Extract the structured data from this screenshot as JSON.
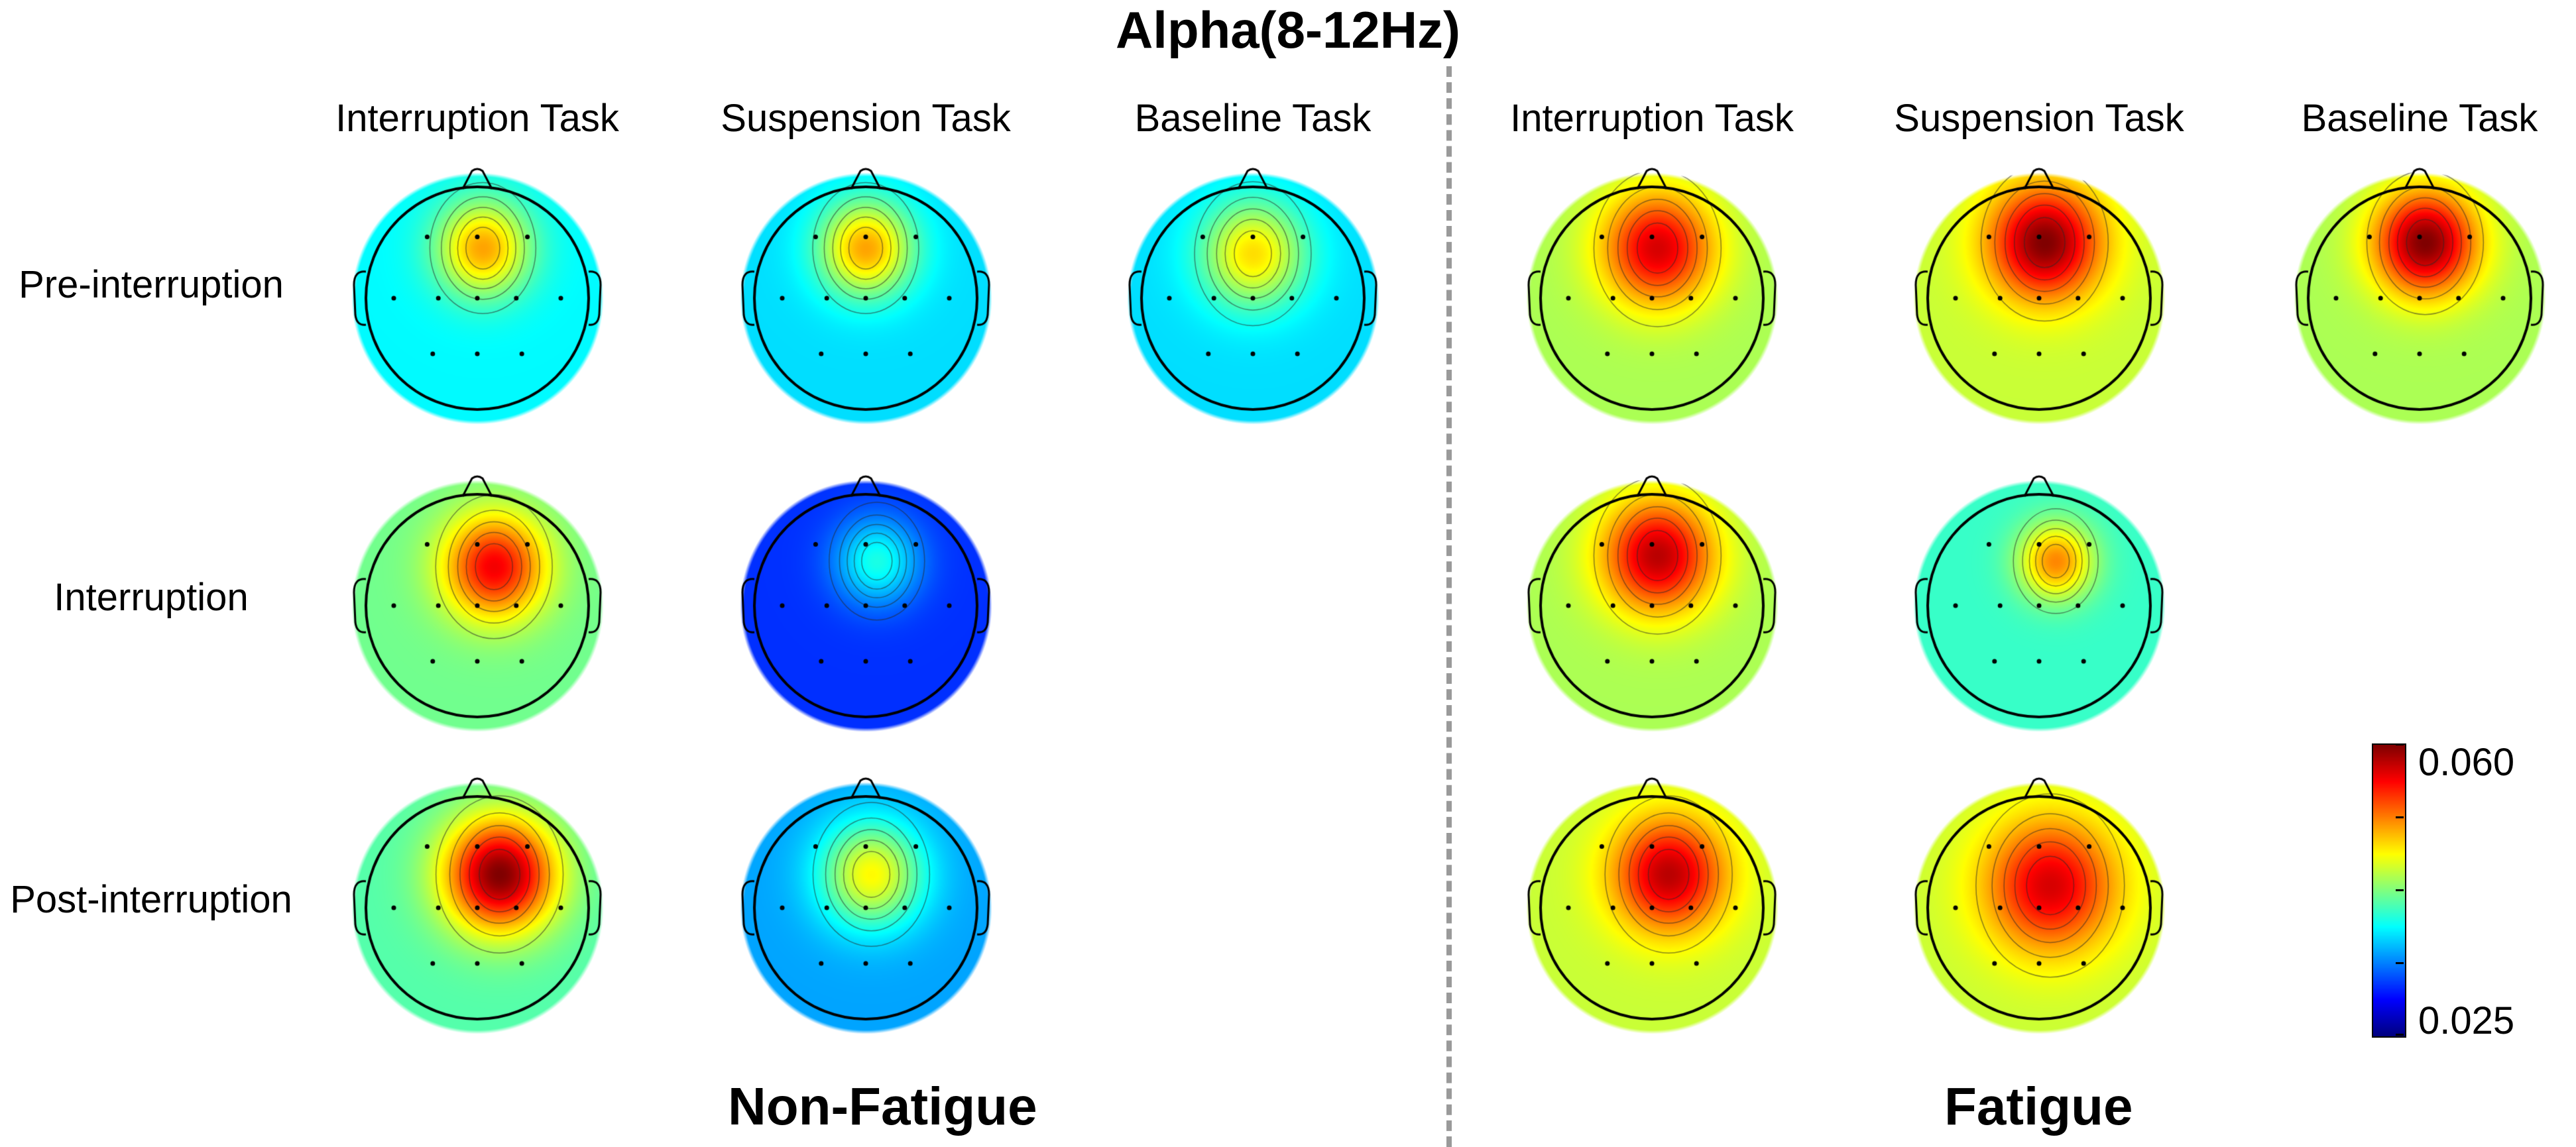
{
  "title": "Alpha(8-12Hz)",
  "groups": [
    {
      "label": "Non-Fatigue",
      "column_headers": [
        "Interruption Task",
        "Suspension Task",
        "Baseline Task"
      ]
    },
    {
      "label": "Fatigue",
      "column_headers": [
        "Interruption Task",
        "Suspension Task",
        "Baseline Task"
      ]
    }
  ],
  "row_labels": [
    "Pre-interruption",
    "Interruption",
    "Post-interruption"
  ],
  "colorbar": {
    "max_label": "0.060",
    "min_label": "0.025",
    "min": 0.025,
    "max": 0.06,
    "colormap": "jet"
  },
  "maps": [
    {
      "group": "Non-Fatigue",
      "task": "Interruption Task",
      "phase": "Pre-interruption",
      "bg": 0.038,
      "peak": 0.05,
      "peak_pos": [
        0.05,
        -0.45
      ],
      "spread": 0.5
    },
    {
      "group": "Non-Fatigue",
      "task": "Suspension Task",
      "phase": "Pre-interruption",
      "bg": 0.037,
      "peak": 0.05,
      "peak_pos": [
        0.0,
        -0.45
      ],
      "spread": 0.5
    },
    {
      "group": "Non-Fatigue",
      "task": "Baseline Task",
      "phase": "Pre-interruption",
      "bg": 0.037,
      "peak": 0.048,
      "peak_pos": [
        0.0,
        -0.4
      ],
      "spread": 0.55
    },
    {
      "group": "Non-Fatigue",
      "task": "Interruption Task",
      "phase": "Interruption",
      "bg": 0.042,
      "peak": 0.056,
      "peak_pos": [
        0.15,
        -0.35
      ],
      "spread": 0.55
    },
    {
      "group": "Non-Fatigue",
      "task": "Suspension Task",
      "phase": "Interruption",
      "bg": 0.031,
      "peak": 0.039,
      "peak_pos": [
        0.1,
        -0.4
      ],
      "spread": 0.45
    },
    {
      "group": "Non-Fatigue",
      "task": "Interruption Task",
      "phase": "Post-interruption",
      "bg": 0.041,
      "peak": 0.06,
      "peak_pos": [
        0.2,
        -0.3
      ],
      "spread": 0.6
    },
    {
      "group": "Non-Fatigue",
      "task": "Suspension Task",
      "phase": "Post-interruption",
      "bg": 0.035,
      "peak": 0.047,
      "peak_pos": [
        0.05,
        -0.3
      ],
      "spread": 0.55
    },
    {
      "group": "Fatigue",
      "task": "Interruption Task",
      "phase": "Pre-interruption",
      "bg": 0.044,
      "peak": 0.057,
      "peak_pos": [
        0.05,
        -0.45
      ],
      "spread": 0.6
    },
    {
      "group": "Fatigue",
      "task": "Suspension Task",
      "phase": "Pre-interruption",
      "bg": 0.045,
      "peak": 0.06,
      "peak_pos": [
        0.05,
        -0.5
      ],
      "spread": 0.6
    },
    {
      "group": "Fatigue",
      "task": "Baseline Task",
      "phase": "Pre-interruption",
      "bg": 0.044,
      "peak": 0.06,
      "peak_pos": [
        0.05,
        -0.5
      ],
      "spread": 0.55
    },
    {
      "group": "Fatigue",
      "task": "Interruption Task",
      "phase": "Interruption",
      "bg": 0.044,
      "peak": 0.058,
      "peak_pos": [
        0.05,
        -0.45
      ],
      "spread": 0.6
    },
    {
      "group": "Fatigue",
      "task": "Suspension Task",
      "phase": "Interruption",
      "bg": 0.04,
      "peak": 0.051,
      "peak_pos": [
        0.15,
        -0.4
      ],
      "spread": 0.4
    },
    {
      "group": "Fatigue",
      "task": "Interruption Task",
      "phase": "Post-interruption",
      "bg": 0.045,
      "peak": 0.058,
      "peak_pos": [
        0.15,
        -0.3
      ],
      "spread": 0.6
    },
    {
      "group": "Fatigue",
      "task": "Suspension Task",
      "phase": "Post-interruption",
      "bg": 0.045,
      "peak": 0.057,
      "peak_pos": [
        0.1,
        -0.2
      ],
      "spread": 0.7
    }
  ]
}
